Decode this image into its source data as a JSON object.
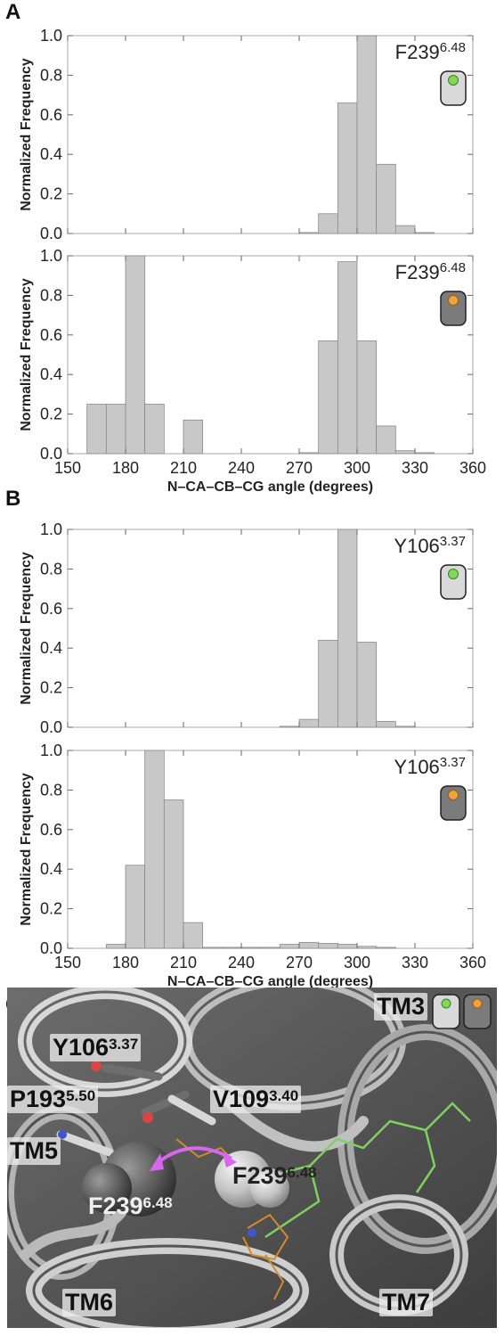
{
  "panel_labels": {
    "a": "A",
    "b": "B",
    "c": "C"
  },
  "colors": {
    "bar_fill": "#c8c8c8",
    "bar_stroke": "#8a8a8a",
    "state_active_dot": "#7ed957",
    "state_inactive_dot": "#f0a33c",
    "cell_light": "#d9d9d9",
    "cell_dark": "#7b7b7b",
    "arrow": "#d966f0"
  },
  "structure": {
    "labels": {
      "tm3": "TM3",
      "tm5": "TM5",
      "tm6": "TM6",
      "tm7": "TM7",
      "y106_main": "Y106",
      "y106_sup": "3.37",
      "p193_main": "P193",
      "p193_sup": "5.50",
      "v109_main": "V109",
      "v109_sup": "3.40",
      "f239a_main": "F239",
      "f239a_sup": "6.48",
      "f239b_main": "F239",
      "f239b_sup": "6.48"
    },
    "icons": [
      "state-active-icon",
      "state-inactive-icon"
    ]
  },
  "chart_data": [
    {
      "type": "bar",
      "panel": "A",
      "annotation": "F239",
      "annotation_sup": "6.48",
      "state_icon": "active",
      "ylabel": "Normalized Frequency",
      "xlabel": "",
      "xlim": [
        150,
        360
      ],
      "ylim": [
        0,
        1.0
      ],
      "xticks": [
        150,
        180,
        210,
        240,
        270,
        300,
        330,
        360
      ],
      "yticks": [
        0.0,
        0.2,
        0.4,
        0.6,
        0.8,
        1.0
      ],
      "bin_width": 10,
      "bin_starts": [
        270,
        280,
        290,
        300,
        310,
        320,
        330
      ],
      "values": [
        0.005,
        0.1,
        0.66,
        1.0,
        0.35,
        0.04,
        0.005
      ]
    },
    {
      "type": "bar",
      "panel": "A",
      "annotation": "F239",
      "annotation_sup": "6.48",
      "state_icon": "inactive",
      "ylabel": "Normalized Frequency",
      "xlabel": "N–CA–CB–CG angle (degrees)",
      "xlim": [
        150,
        360
      ],
      "ylim": [
        0,
        1.0
      ],
      "xticks": [
        150,
        180,
        210,
        240,
        270,
        300,
        330,
        360
      ],
      "yticks": [
        0.0,
        0.2,
        0.4,
        0.6,
        0.8,
        1.0
      ],
      "bin_width": 10,
      "bin_starts": [
        160,
        170,
        180,
        190,
        210,
        270,
        280,
        290,
        300,
        310,
        320,
        330
      ],
      "values": [
        0.25,
        0.25,
        1.0,
        0.25,
        0.17,
        0.005,
        0.57,
        0.97,
        0.57,
        0.14,
        0.015,
        0.005
      ]
    },
    {
      "type": "bar",
      "panel": "B",
      "annotation": "Y106",
      "annotation_sup": "3.37",
      "state_icon": "active",
      "ylabel": "Normalized Frequency",
      "xlabel": "",
      "xlim": [
        150,
        360
      ],
      "ylim": [
        0,
        1.0
      ],
      "xticks": [
        150,
        180,
        210,
        240,
        270,
        300,
        330,
        360
      ],
      "yticks": [
        0.0,
        0.2,
        0.4,
        0.6,
        0.8,
        1.0
      ],
      "bin_width": 10,
      "bin_starts": [
        260,
        270,
        280,
        290,
        300,
        310,
        320
      ],
      "values": [
        0.005,
        0.04,
        0.44,
        1.0,
        0.43,
        0.03,
        0.005
      ]
    },
    {
      "type": "bar",
      "panel": "B",
      "annotation": "Y106",
      "annotation_sup": "3.37",
      "state_icon": "inactive",
      "ylabel": "Normalized Frequency",
      "xlabel": "N–CA–CB–CG angle (degrees)",
      "xlim": [
        150,
        360
      ],
      "ylim": [
        0,
        1.0
      ],
      "xticks": [
        150,
        180,
        210,
        240,
        270,
        300,
        330,
        360
      ],
      "yticks": [
        0.0,
        0.2,
        0.4,
        0.6,
        0.8,
        1.0
      ],
      "bin_width": 10,
      "bin_starts": [
        170,
        180,
        190,
        200,
        210,
        220,
        230,
        240,
        250,
        260,
        270,
        280,
        290,
        300,
        310
      ],
      "values": [
        0.02,
        0.42,
        1.0,
        0.75,
        0.13,
        0.005,
        0.005,
        0.005,
        0.005,
        0.02,
        0.03,
        0.025,
        0.02,
        0.01,
        0.005
      ]
    }
  ]
}
